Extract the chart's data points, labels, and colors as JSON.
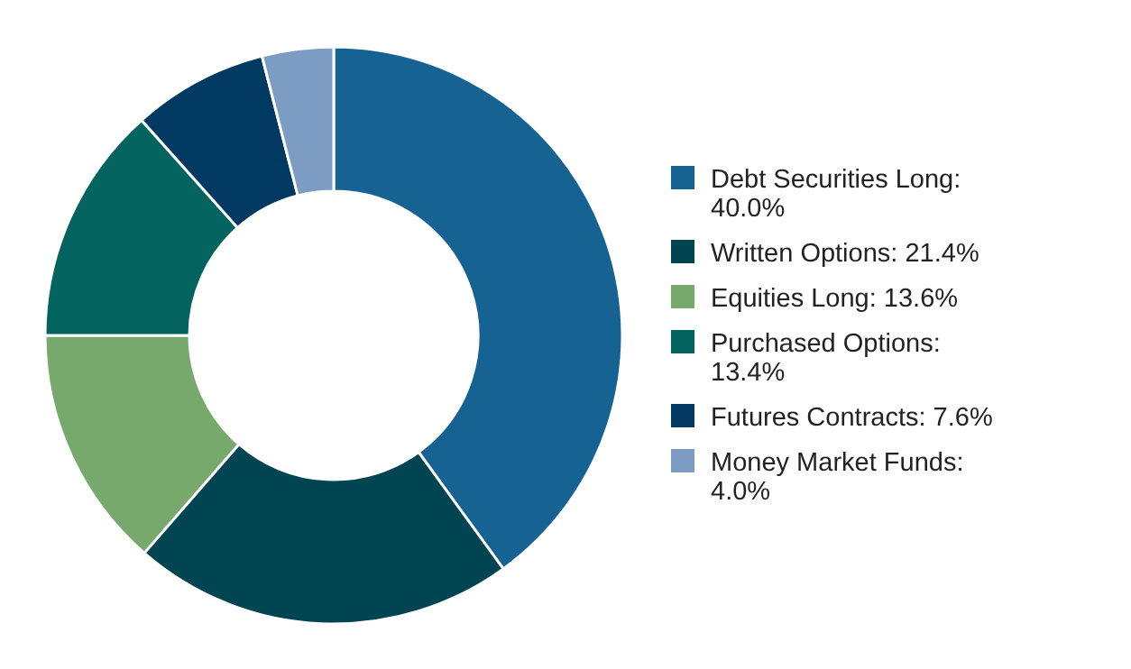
{
  "chart_data": {
    "type": "donut",
    "categories": [
      "Debt Securities Long: 40.0%",
      "Written Options: 21.4%",
      "Equities Long: 13.6%",
      "Purchased Options: 13.4%",
      "Futures Contracts: 7.6%",
      "Money Market Funds: 4.0%"
    ],
    "values": [
      40.0,
      21.4,
      13.6,
      13.4,
      7.6,
      4.0
    ],
    "colors": [
      "#156293",
      "#024552",
      "#78a96c",
      "#03635f",
      "#003a63",
      "#7c9cc4"
    ],
    "legend": "right"
  }
}
